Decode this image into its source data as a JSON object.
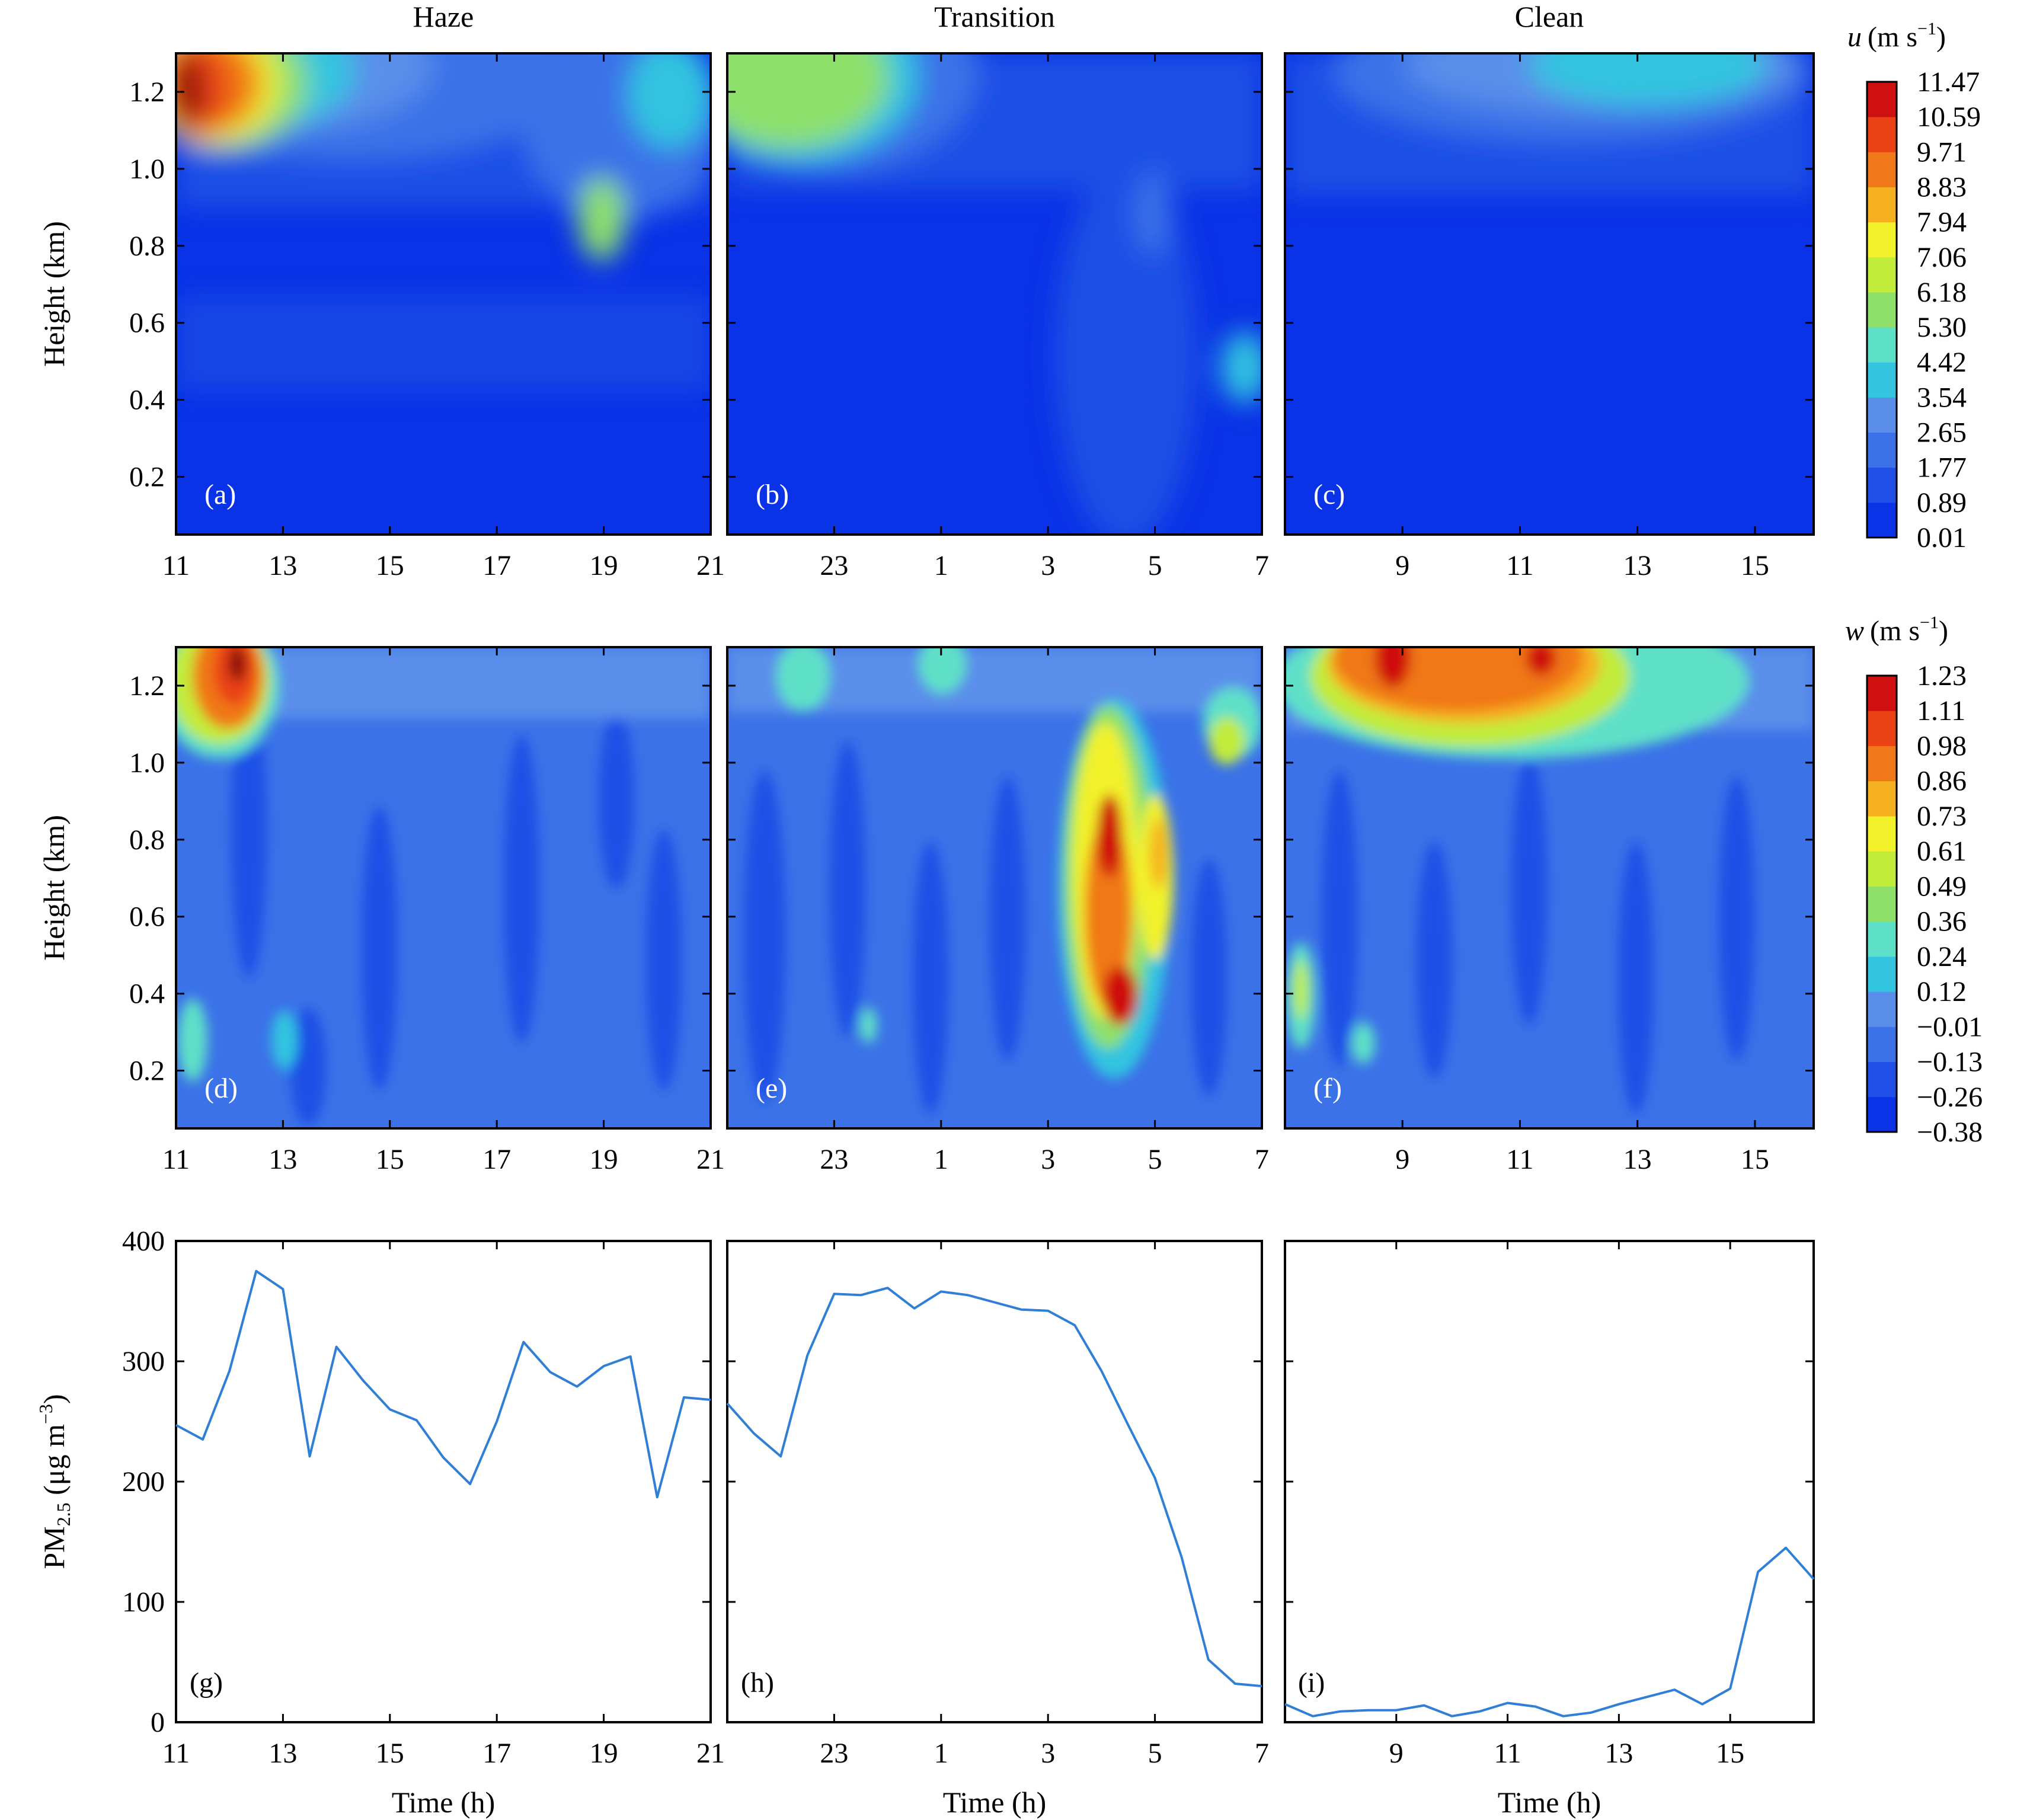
{
  "figure": {
    "column_titles": [
      "Haze",
      "Transition",
      "Clean"
    ]
  },
  "chart_data": [
    {
      "type": "heatmap",
      "row": "u",
      "ylabel": "Height (km)",
      "ylim": [
        0.05,
        1.3
      ],
      "yticks": [
        "0.2",
        "0.4",
        "0.6",
        "0.8",
        "1.0",
        "1.2"
      ],
      "colorbar": {
        "title_var": "u",
        "title_unit": "(m s",
        "title_exp": "−1",
        "title_close": ")",
        "levels": [
          "0.01",
          "0.89",
          "1.77",
          "2.65",
          "3.54",
          "4.42",
          "5.30",
          "6.18",
          "7.06",
          "7.94",
          "8.83",
          "9.71",
          "10.59",
          "11.47"
        ],
        "colors": [
          "#0a32e6",
          "#1f4fe6",
          "#3b72e8",
          "#5a8eea",
          "#33c4e0",
          "#5ee0c8",
          "#8ee06a",
          "#c2ec3a",
          "#f2f22a",
          "#f5b020",
          "#f07818",
          "#ea4214",
          "#cf1010",
          "#8a0808"
        ]
      },
      "panels": [
        {
          "label": "(a)",
          "x_ticks": [
            "11",
            "13",
            "15",
            "17",
            "19",
            "21"
          ],
          "description": "Strong u (up to 11.47 m/s) at 1.0–1.3 km during 11–13 h, weaker jet aloft later, mostly 0–2 m/s below 0.9 km"
        },
        {
          "label": "(b)",
          "x_ticks": [
            "23",
            "1",
            "3",
            "5",
            "7"
          ],
          "description": "Moderate u (5–6 m/s) above 1.0 km during 21–24 h, weak winds below"
        },
        {
          "label": "(c)",
          "x_ticks": [
            "9",
            "11",
            "13",
            "15"
          ],
          "description": "Weak u throughout, 3–4 m/s near top around 13–15 h"
        }
      ]
    },
    {
      "type": "heatmap",
      "row": "w",
      "ylabel": "Height (km)",
      "ylim": [
        0.05,
        1.3
      ],
      "yticks": [
        "0.2",
        "0.4",
        "0.6",
        "0.8",
        "1.0",
        "1.2"
      ],
      "colorbar": {
        "title_var": "w",
        "title_unit": "(m s",
        "title_exp": "−1",
        "title_close": ")",
        "levels": [
          "−0.38",
          "−0.26",
          "−0.13",
          "−0.01",
          "0.12",
          "0.24",
          "0.36",
          "0.49",
          "0.61",
          "0.73",
          "0.86",
          "0.98",
          "1.11",
          "1.23"
        ],
        "colors": [
          "#0a32e6",
          "#1f4fe6",
          "#3b72e8",
          "#5a8eea",
          "#33c4e0",
          "#5ee0c8",
          "#8ee06a",
          "#c2ec3a",
          "#f2f22a",
          "#f5b020",
          "#f07818",
          "#ea4214",
          "#cf1010",
          "#8a0808"
        ]
      },
      "panels": [
        {
          "label": "(d)",
          "x_ticks": [
            "11",
            "13",
            "15",
            "17",
            "19",
            "21"
          ],
          "description": "Updraft up to 1.23 m/s at 1.0–1.3 km near 12 h"
        },
        {
          "label": "(e)",
          "x_ticks": [
            "23",
            "1",
            "3",
            "5",
            "7"
          ],
          "description": "Convective updraft 0.4–1.1 km around 3–4 h, peaking ~1.0 m/s"
        },
        {
          "label": "(f)",
          "x_ticks": [
            "9",
            "11",
            "13",
            "15"
          ],
          "description": "Strong updraft ~0.9 m/s above 1.05 km from 9–13 h"
        }
      ]
    },
    {
      "type": "line",
      "row": "pm",
      "ylabel_main": "PM",
      "ylabel_sub": "2.5",
      "ylabel_unit": " (μg m",
      "ylabel_exp": "−3",
      "ylabel_close": ")",
      "ylim": [
        0,
        400
      ],
      "yticks": [
        "0",
        "100",
        "200",
        "300",
        "400"
      ],
      "xlabel": "Time (h)",
      "panels": [
        {
          "label": "(g)",
          "x_ticks": [
            "11",
            "13",
            "15",
            "17",
            "19",
            "21"
          ],
          "x": [
            11,
            11.5,
            12,
            12.5,
            13,
            13.5,
            14,
            14.5,
            15,
            15.5,
            16,
            16.5,
            17,
            17.5,
            18,
            18.5,
            19,
            19.5,
            20,
            20.5,
            21
          ],
          "values": [
            247,
            235,
            292,
            375,
            360,
            221,
            312,
            284,
            260,
            251,
            220,
            198,
            250,
            316,
            291,
            279,
            296,
            304,
            187,
            270,
            268
          ]
        },
        {
          "label": "(h)",
          "x_ticks": [
            "23",
            "1",
            "3",
            "5",
            "7"
          ],
          "x": [
            21,
            21.5,
            22,
            22.5,
            23,
            23.5,
            24,
            24.5,
            25,
            25.5,
            26,
            26.5,
            27,
            27.5,
            28,
            28.5,
            29,
            29.5,
            30,
            30.5,
            31
          ],
          "values": [
            265,
            240,
            221,
            305,
            356,
            355,
            361,
            344,
            358,
            355,
            349,
            343,
            342,
            330,
            292,
            247,
            203,
            137,
            52,
            32,
            30
          ]
        },
        {
          "label": "(i)",
          "x_ticks": [
            "9",
            "11",
            "13",
            "15"
          ],
          "x": [
            7,
            7.5,
            8,
            8.5,
            9,
            9.5,
            10,
            10.5,
            11,
            11.5,
            12,
            12.5,
            13,
            13.5,
            14,
            14.5,
            15,
            15.5,
            16,
            16.5
          ],
          "values": [
            15,
            5,
            9,
            10,
            10,
            14,
            5,
            9,
            16,
            13,
            5,
            8,
            15,
            21,
            27,
            15,
            28,
            125,
            145,
            119
          ]
        }
      ]
    }
  ]
}
